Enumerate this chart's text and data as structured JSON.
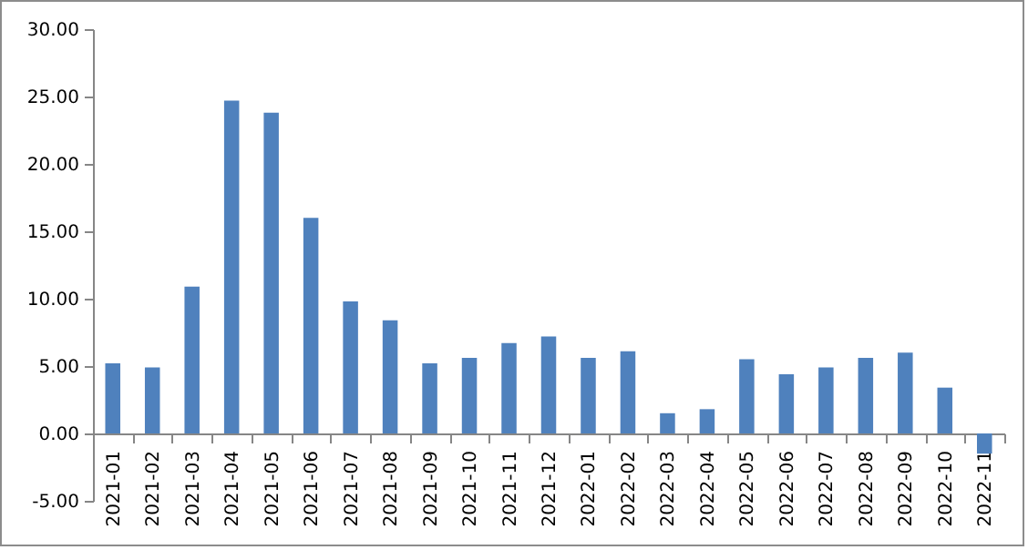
{
  "chart_data": {
    "type": "bar",
    "categories": [
      "2021-01",
      "2021-02",
      "2021-03",
      "2021-04",
      "2021-05",
      "2021-06",
      "2021-07",
      "2021-08",
      "2021-09",
      "2021-10",
      "2021-11",
      "2021-12",
      "2022-01",
      "2022-02",
      "2022-03",
      "2022-04",
      "2022-05",
      "2022-06",
      "2022-07",
      "2022-08",
      "2022-09",
      "2022-10",
      "2022-11"
    ],
    "values": [
      5.2,
      4.9,
      10.9,
      24.7,
      23.8,
      16.0,
      9.8,
      8.4,
      5.2,
      5.6,
      6.7,
      7.2,
      5.6,
      6.1,
      1.5,
      1.8,
      5.5,
      4.4,
      4.9,
      5.6,
      6.0,
      3.4,
      -1.5
    ],
    "color": "#4f81bd",
    "ylim": [
      -5,
      30
    ],
    "yticks": [
      {
        "value": -5,
        "label": "-5.00"
      },
      {
        "value": 0,
        "label": "0.00"
      },
      {
        "value": 5,
        "label": "5.00"
      },
      {
        "value": 10,
        "label": "10.00"
      },
      {
        "value": 15,
        "label": "15.00"
      },
      {
        "value": 20,
        "label": "20.00"
      },
      {
        "value": 25,
        "label": "25.00"
      },
      {
        "value": 30,
        "label": "30.00"
      }
    ],
    "grid": false
  }
}
